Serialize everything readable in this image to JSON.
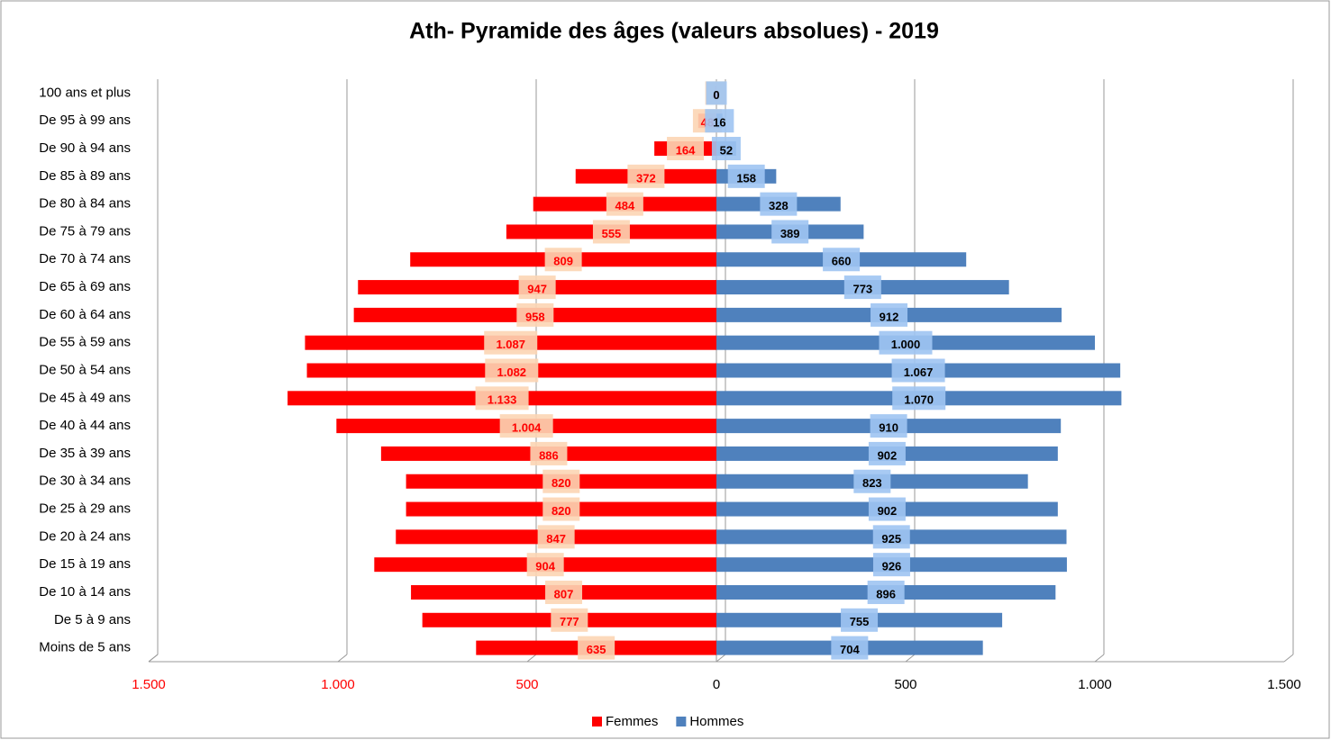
{
  "chart_data": {
    "type": "pyramid",
    "title": "Ath- Pyramide des âges  (valeurs absolues)  - 2019",
    "categories": [
      "Moins de 5 ans",
      "De 5 à 9 ans",
      "De 10 à 14 ans",
      "De 15 à 19 ans",
      "De 20 à 24 ans",
      "De 25 à 29 ans",
      "De 30 à 34 ans",
      "De 35 à 39 ans",
      "De 40 à 44 ans",
      "De 45 à 49 ans",
      "De 50 à 54 ans",
      "De 55 à 59 ans",
      "De 60 à 64 ans",
      "De 65 à 69 ans",
      "De 70 à 74 ans",
      "De 75 à 79 ans",
      "De 80 à 84 ans",
      "De 85 à 89 ans",
      "De 90 à 94 ans",
      "De 95 à 99 ans",
      "100 ans et plus"
    ],
    "series": [
      {
        "name": "Femmes",
        "color": "#ff0000",
        "values": [
          -635,
          -777,
          -807,
          -904,
          -847,
          -820,
          -820,
          -886,
          -1004,
          -1133,
          -1082,
          -1087,
          -958,
          -947,
          -809,
          -555,
          -484,
          -372,
          -164,
          -48,
          -4
        ],
        "value_labels": [
          "635",
          "777",
          "807",
          "904",
          "847",
          "820",
          "820",
          "886",
          "1.004",
          "1.133",
          "1.082",
          "1.087",
          "958",
          "947",
          "809",
          "555",
          "484",
          "372",
          "164",
          "48",
          "4"
        ]
      },
      {
        "name": "Hommes",
        "color": "#4f81bd",
        "values": [
          704,
          755,
          896,
          926,
          925,
          902,
          823,
          902,
          910,
          1070,
          1067,
          1000,
          912,
          773,
          660,
          389,
          328,
          158,
          52,
          16,
          0
        ],
        "value_labels": [
          "704",
          "755",
          "896",
          "926",
          "925",
          "902",
          "823",
          "902",
          "910",
          "1.070",
          "1.067",
          "1.000",
          "912",
          "773",
          "660",
          "389",
          "328",
          "158",
          "52",
          "16",
          "0"
        ]
      }
    ],
    "xlim": [
      -1500,
      1500
    ],
    "xticks": [
      {
        "value": -1500,
        "label": "1.500"
      },
      {
        "value": -1000,
        "label": "1.000"
      },
      {
        "value": -500,
        "label": "500"
      },
      0,
      500,
      {
        "value": 1000,
        "label": "1.000"
      },
      {
        "value": 1500,
        "label": "1.500"
      }
    ],
    "grid": true,
    "legend": "bottom"
  }
}
